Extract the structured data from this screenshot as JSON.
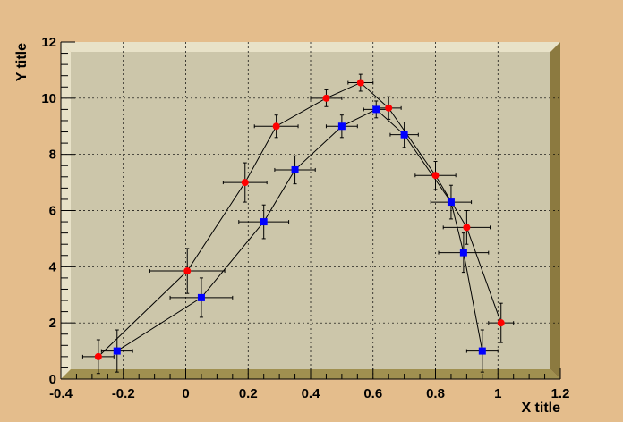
{
  "chart_data": {
    "type": "scatter",
    "title": "",
    "xlabel": "X title",
    "ylabel": "Y title",
    "xlim": [
      -0.4,
      1.2
    ],
    "ylim": [
      0,
      12
    ],
    "xticks": [
      -0.4,
      -0.2,
      0,
      0.2,
      0.4,
      0.6,
      0.8,
      1,
      1.2
    ],
    "yticks": [
      0,
      2,
      4,
      6,
      8,
      10,
      12
    ],
    "grid": true,
    "series": [
      {
        "marker": "circle",
        "color": "#ff0000",
        "x": [
          -0.28,
          0.005,
          0.19,
          0.29,
          0.45,
          0.56,
          0.65,
          0.8,
          0.9,
          1.01
        ],
        "y": [
          0.8,
          3.85,
          7.0,
          9.0,
          10.0,
          10.55,
          9.65,
          7.25,
          5.4,
          2.0
        ],
        "xerr": [
          0.05,
          0.12,
          0.07,
          0.07,
          0.05,
          0.04,
          0.04,
          0.065,
          0.075,
          0.04
        ],
        "yerr": [
          0.6,
          0.8,
          0.7,
          0.4,
          0.3,
          0.3,
          0.4,
          0.5,
          0.6,
          0.7
        ]
      },
      {
        "marker": "square",
        "color": "#0000ff",
        "x": [
          -0.22,
          0.05,
          0.25,
          0.35,
          0.5,
          0.61,
          0.7,
          0.85,
          0.89,
          0.95
        ],
        "y": [
          1.0,
          2.9,
          5.6,
          7.45,
          9.0,
          9.6,
          8.7,
          6.3,
          4.5,
          1.0
        ],
        "xerr": [
          0.05,
          0.1,
          0.08,
          0.065,
          0.05,
          0.04,
          0.045,
          0.065,
          0.08,
          0.05
        ],
        "yerr": [
          0.75,
          0.7,
          0.6,
          0.5,
          0.4,
          0.3,
          0.45,
          0.6,
          0.7,
          0.75
        ]
      }
    ]
  },
  "colors": {
    "canvas": "#e4bd8c",
    "frame_face": "#ccc6aa",
    "frame_top": "#e8e2c8",
    "frame_side": "#8c7a40",
    "frame_bottom": "#a09050"
  }
}
